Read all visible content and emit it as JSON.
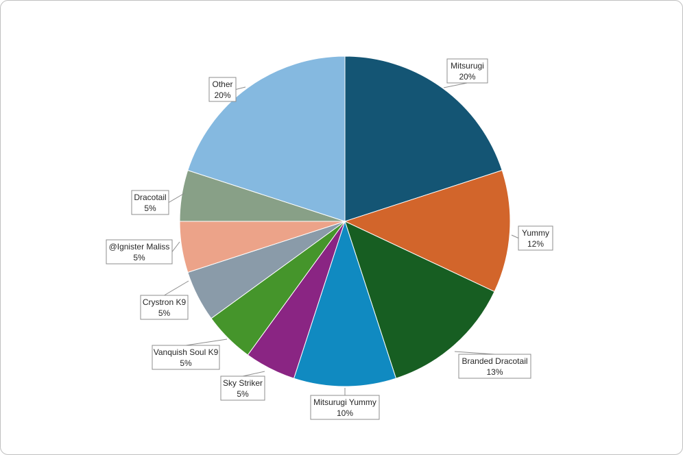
{
  "chart_data": {
    "type": "pie",
    "title": "",
    "slices": [
      {
        "label": "Mitsurugi",
        "value": 20,
        "pct_label": "20%",
        "color": "#145574"
      },
      {
        "label": "Yummy",
        "value": 12,
        "pct_label": "12%",
        "color": "#d2652b"
      },
      {
        "label": "Branded Dracotail",
        "value": 13,
        "pct_label": "13%",
        "color": "#175e22"
      },
      {
        "label": "Mitsurugi Yummy",
        "value": 10,
        "pct_label": "10%",
        "color": "#108ac1"
      },
      {
        "label": "Sky Striker",
        "value": 5,
        "pct_label": "5%",
        "color": "#8a2583"
      },
      {
        "label": "Vanquish Soul K9",
        "value": 5,
        "pct_label": "5%",
        "color": "#45952b"
      },
      {
        "label": "Crystron K9",
        "value": 5,
        "pct_label": "5%",
        "color": "#8a9ba9"
      },
      {
        "label": "@Ignister Maliss",
        "value": 5,
        "pct_label": "5%",
        "color": "#eca389"
      },
      {
        "label": "Dracotail",
        "value": 5,
        "pct_label": "5%",
        "color": "#88a087"
      },
      {
        "label": "Other",
        "value": 20,
        "pct_label": "20%",
        "color": "#85b9e0"
      }
    ]
  }
}
